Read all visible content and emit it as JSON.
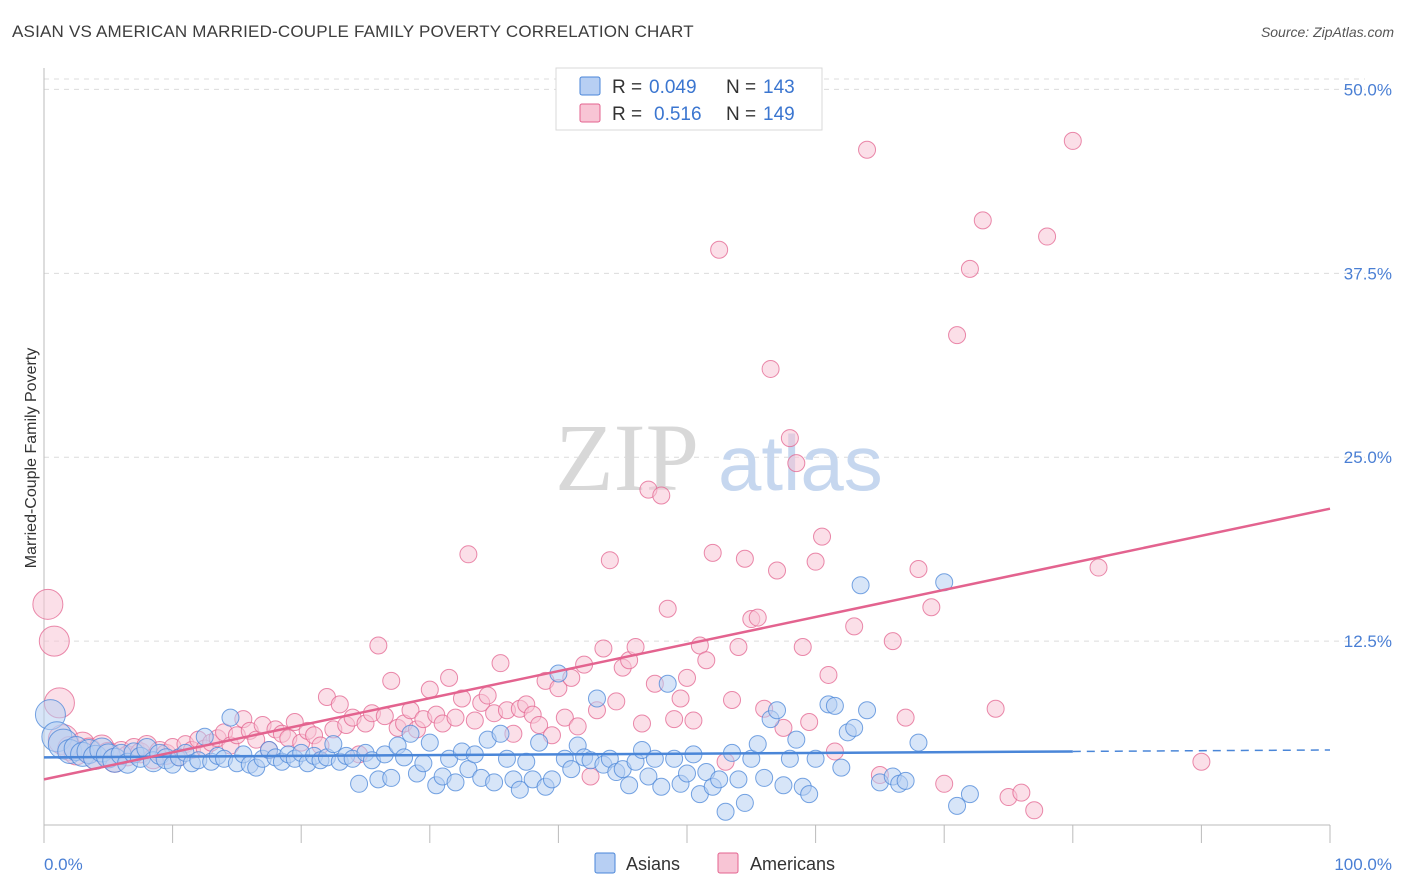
{
  "header": {
    "title": "ASIAN VS AMERICAN MARRIED-COUPLE FAMILY POVERTY CORRELATION CHART",
    "source": "Source: ZipAtlas.com"
  },
  "watermark": {
    "zip": "ZIP",
    "atlas": "atlas"
  },
  "colors": {
    "asian": "#4a86d8",
    "asian_fill": "#b7cff3",
    "american": "#e3638f",
    "american_fill": "#f8c5d5",
    "tick_text": "#4a7fd4",
    "grid": "#dcdcdc"
  },
  "legend": {
    "rows": [
      {
        "r_label": "R =",
        "r_value": "0.049",
        "n_label": "N =",
        "n_value": "143"
      },
      {
        "r_label": "R =",
        "r_value": "0.516",
        "n_label": "N =",
        "n_value": "149"
      }
    ]
  },
  "bottom_legend": [
    "Asians",
    "Americans"
  ],
  "chart_data": {
    "type": "scatter",
    "title": "ASIAN VS AMERICAN MARRIED-COUPLE FAMILY POVERTY CORRELATION CHART",
    "xlabel": "",
    "ylabel": "Married-Couple Family Poverty",
    "xlim": [
      0,
      100
    ],
    "ylim": [
      0,
      52
    ],
    "x_tick_labels": [
      "0.0%",
      "100.0%"
    ],
    "y_ticks": [
      12.5,
      25.0,
      37.5,
      50.0
    ],
    "y_tick_labels": [
      "12.5%",
      "25.0%",
      "37.5%",
      "50.0%"
    ],
    "grid": true,
    "series": [
      {
        "name": "Asians",
        "r": 0.049,
        "n": 143,
        "trend": {
          "x": [
            0,
            80
          ],
          "y": [
            4.6,
            5.0
          ],
          "dashed_to": 100
        },
        "points": [
          [
            0.5,
            7.5
          ],
          [
            1,
            6
          ],
          [
            1.5,
            5.5
          ],
          [
            2,
            5
          ],
          [
            2.5,
            5.2
          ],
          [
            3,
            4.8
          ],
          [
            3.5,
            5
          ],
          [
            4,
            4.6
          ],
          [
            4.5,
            5.1
          ],
          [
            5,
            4.7
          ],
          [
            5.5,
            4.4
          ],
          [
            6,
            4.8
          ],
          [
            6.5,
            4.2
          ],
          [
            7,
            4.9
          ],
          [
            7.5,
            4.6
          ],
          [
            8,
            5.2
          ],
          [
            8.5,
            4.3
          ],
          [
            9,
            4.8
          ],
          [
            9.5,
            4.5
          ],
          [
            10,
            4.1
          ],
          [
            10.5,
            4.6
          ],
          [
            11,
            4.9
          ],
          [
            11.5,
            4.2
          ],
          [
            12,
            4.4
          ],
          [
            12.5,
            6
          ],
          [
            13,
            4.3
          ],
          [
            13.5,
            4.7
          ],
          [
            14,
            4.5
          ],
          [
            14.5,
            7.3
          ],
          [
            15,
            4.2
          ],
          [
            15.5,
            4.8
          ],
          [
            16,
            4.1
          ],
          [
            16.5,
            3.9
          ],
          [
            17,
            4.5
          ],
          [
            17.5,
            5.1
          ],
          [
            18,
            4.6
          ],
          [
            18.5,
            4.3
          ],
          [
            19,
            4.8
          ],
          [
            19.5,
            4.5
          ],
          [
            20,
            4.9
          ],
          [
            20.5,
            4.2
          ],
          [
            21,
            4.7
          ],
          [
            21.5,
            4.4
          ],
          [
            22,
            4.6
          ],
          [
            22.5,
            5.5
          ],
          [
            23,
            4.3
          ],
          [
            23.5,
            4.7
          ],
          [
            24,
            4.5
          ],
          [
            24.5,
            2.8
          ],
          [
            25,
            4.9
          ],
          [
            25.5,
            4.4
          ],
          [
            26,
            3.1
          ],
          [
            26.5,
            4.8
          ],
          [
            27,
            3.2
          ],
          [
            27.5,
            5.4
          ],
          [
            28,
            4.6
          ],
          [
            28.5,
            6.2
          ],
          [
            29,
            3.5
          ],
          [
            29.5,
            4.2
          ],
          [
            30,
            5.6
          ],
          [
            30.5,
            2.7
          ],
          [
            31,
            3.3
          ],
          [
            31.5,
            4.5
          ],
          [
            32,
            2.9
          ],
          [
            32.5,
            5
          ],
          [
            33,
            3.8
          ],
          [
            33.5,
            4.8
          ],
          [
            34,
            3.2
          ],
          [
            34.5,
            5.8
          ],
          [
            35,
            2.9
          ],
          [
            35.5,
            6.2
          ],
          [
            36,
            4.5
          ],
          [
            36.5,
            3.1
          ],
          [
            37,
            2.4
          ],
          [
            37.5,
            4.3
          ],
          [
            38,
            3.1
          ],
          [
            38.5,
            5.6
          ],
          [
            39,
            2.6
          ],
          [
            39.5,
            3.1
          ],
          [
            40,
            10.3
          ],
          [
            40.5,
            4.5
          ],
          [
            41,
            3.8
          ],
          [
            41.5,
            5.4
          ],
          [
            42,
            4.6
          ],
          [
            42.5,
            4.4
          ],
          [
            43,
            8.6
          ],
          [
            43.5,
            4.1
          ],
          [
            44,
            4.5
          ],
          [
            44.5,
            3.6
          ],
          [
            45,
            3.8
          ],
          [
            45.5,
            2.7
          ],
          [
            46,
            4.3
          ],
          [
            46.5,
            5.1
          ],
          [
            47,
            3.3
          ],
          [
            47.5,
            4.5
          ],
          [
            48,
            2.6
          ],
          [
            48.5,
            9.6
          ],
          [
            49,
            4.5
          ],
          [
            49.5,
            2.8
          ],
          [
            50,
            3.5
          ],
          [
            50.5,
            4.8
          ],
          [
            51,
            2.1
          ],
          [
            51.5,
            3.6
          ],
          [
            52,
            2.6
          ],
          [
            52.5,
            3.1
          ],
          [
            53,
            0.9
          ],
          [
            53.5,
            4.9
          ],
          [
            54,
            3.1
          ],
          [
            54.5,
            1.5
          ],
          [
            55,
            4.5
          ],
          [
            55.5,
            5.5
          ],
          [
            56,
            3.2
          ],
          [
            56.5,
            7.2
          ],
          [
            57,
            7.8
          ],
          [
            57.5,
            2.7
          ],
          [
            58,
            4.5
          ],
          [
            58.5,
            5.8
          ],
          [
            59,
            2.6
          ],
          [
            59.5,
            2.1
          ],
          [
            60,
            4.5
          ],
          [
            61,
            8.2
          ],
          [
            61.5,
            8.1
          ],
          [
            62,
            3.9
          ],
          [
            62.5,
            6.3
          ],
          [
            63,
            6.6
          ],
          [
            63.5,
            16.3
          ],
          [
            64,
            7.8
          ],
          [
            65,
            2.9
          ],
          [
            66,
            3.3
          ],
          [
            66.5,
            2.8
          ],
          [
            67,
            3
          ],
          [
            68,
            5.6
          ],
          [
            70,
            16.5
          ],
          [
            71,
            1.3
          ],
          [
            72,
            2.1
          ]
        ]
      },
      {
        "name": "Americans",
        "r": 0.516,
        "n": 149,
        "trend": {
          "x": [
            0,
            100
          ],
          "y": [
            3.1,
            21.5
          ]
        },
        "points": [
          [
            0.3,
            15
          ],
          [
            0.8,
            12.5
          ],
          [
            1.2,
            8.3
          ],
          [
            1.5,
            5.8
          ],
          [
            2,
            5.2
          ],
          [
            2.5,
            4.9
          ],
          [
            3,
            5.5
          ],
          [
            3.5,
            5.1
          ],
          [
            4,
            4.6
          ],
          [
            4.5,
            5.3
          ],
          [
            5,
            4.8
          ],
          [
            5.5,
            4.4
          ],
          [
            6,
            5
          ],
          [
            6.5,
            4.7
          ],
          [
            7,
            5.2
          ],
          [
            7.5,
            4.9
          ],
          [
            8,
            5.4
          ],
          [
            8.5,
            4.5
          ],
          [
            9,
            5
          ],
          [
            9.5,
            4.8
          ],
          [
            10,
            5.3
          ],
          [
            10.5,
            4.6
          ],
          [
            11,
            5.5
          ],
          [
            11.5,
            5.1
          ],
          [
            12,
            5.8
          ],
          [
            12.5,
            5.2
          ],
          [
            13,
            5.6
          ],
          [
            13.5,
            5.9
          ],
          [
            14,
            6.3
          ],
          [
            14.5,
            5.4
          ],
          [
            15,
            6.1
          ],
          [
            15.5,
            7.2
          ],
          [
            16,
            6.4
          ],
          [
            16.5,
            5.8
          ],
          [
            17,
            6.8
          ],
          [
            17.5,
            5.1
          ],
          [
            18,
            6.5
          ],
          [
            18.5,
            6.2
          ],
          [
            19,
            5.9
          ],
          [
            19.5,
            7
          ],
          [
            20,
            5.6
          ],
          [
            20.5,
            6.4
          ],
          [
            21,
            6.1
          ],
          [
            21.5,
            5.4
          ],
          [
            22,
            8.7
          ],
          [
            22.5,
            6.5
          ],
          [
            23,
            8.2
          ],
          [
            23.5,
            6.8
          ],
          [
            24,
            7.3
          ],
          [
            24.5,
            4.8
          ],
          [
            25,
            6.9
          ],
          [
            25.5,
            7.6
          ],
          [
            26,
            12.2
          ],
          [
            26.5,
            7.4
          ],
          [
            27,
            9.8
          ],
          [
            27.5,
            6.6
          ],
          [
            28,
            6.9
          ],
          [
            28.5,
            7.8
          ],
          [
            29,
            6.5
          ],
          [
            29.5,
            7.2
          ],
          [
            30,
            9.2
          ],
          [
            30.5,
            7.5
          ],
          [
            31,
            6.9
          ],
          [
            31.5,
            10
          ],
          [
            32,
            7.3
          ],
          [
            32.5,
            8.6
          ],
          [
            33,
            18.4
          ],
          [
            33.5,
            7.1
          ],
          [
            34,
            8.3
          ],
          [
            34.5,
            8.8
          ],
          [
            35,
            7.6
          ],
          [
            35.5,
            11
          ],
          [
            36,
            7.8
          ],
          [
            36.5,
            6.2
          ],
          [
            37,
            7.9
          ],
          [
            37.5,
            8.2
          ],
          [
            38,
            7.5
          ],
          [
            38.5,
            6.8
          ],
          [
            39,
            9.8
          ],
          [
            39.5,
            6.1
          ],
          [
            40,
            9.3
          ],
          [
            40.5,
            7.3
          ],
          [
            41,
            10
          ],
          [
            41.5,
            6.7
          ],
          [
            42,
            10.9
          ],
          [
            42.5,
            3.3
          ],
          [
            43,
            7.8
          ],
          [
            43.5,
            12
          ],
          [
            44,
            18
          ],
          [
            44.5,
            8.4
          ],
          [
            45,
            10.7
          ],
          [
            45.5,
            11.2
          ],
          [
            46,
            12.1
          ],
          [
            46.5,
            6.9
          ],
          [
            47,
            22.8
          ],
          [
            47.5,
            9.6
          ],
          [
            48,
            22.4
          ],
          [
            48.5,
            14.7
          ],
          [
            49,
            7.2
          ],
          [
            49.5,
            8.6
          ],
          [
            50,
            10
          ],
          [
            50.5,
            7.1
          ],
          [
            51,
            12.2
          ],
          [
            51.5,
            11.2
          ],
          [
            52,
            18.5
          ],
          [
            52.5,
            39.1
          ],
          [
            53,
            4.3
          ],
          [
            53.5,
            8.5
          ],
          [
            54,
            12.1
          ],
          [
            54.5,
            18.1
          ],
          [
            55,
            14
          ],
          [
            55.5,
            14.1
          ],
          [
            56,
            7.9
          ],
          [
            56.5,
            31
          ],
          [
            57,
            17.3
          ],
          [
            57.5,
            6.6
          ],
          [
            58,
            26.3
          ],
          [
            58.5,
            24.6
          ],
          [
            59,
            12.1
          ],
          [
            59.5,
            7
          ],
          [
            60,
            17.9
          ],
          [
            60.5,
            19.6
          ],
          [
            61,
            10.2
          ],
          [
            61.5,
            5
          ],
          [
            63,
            13.5
          ],
          [
            64,
            45.9
          ],
          [
            65,
            3.4
          ],
          [
            66,
            12.5
          ],
          [
            67,
            7.3
          ],
          [
            68,
            17.4
          ],
          [
            69,
            14.8
          ],
          [
            70,
            2.8
          ],
          [
            71,
            33.3
          ],
          [
            72,
            37.8
          ],
          [
            73,
            41.1
          ],
          [
            74,
            7.9
          ],
          [
            75,
            1.9
          ],
          [
            76,
            2.2
          ],
          [
            77,
            1
          ],
          [
            78,
            40
          ],
          [
            80,
            46.5
          ],
          [
            82,
            17.5
          ],
          [
            90,
            4.3
          ]
        ]
      }
    ]
  }
}
